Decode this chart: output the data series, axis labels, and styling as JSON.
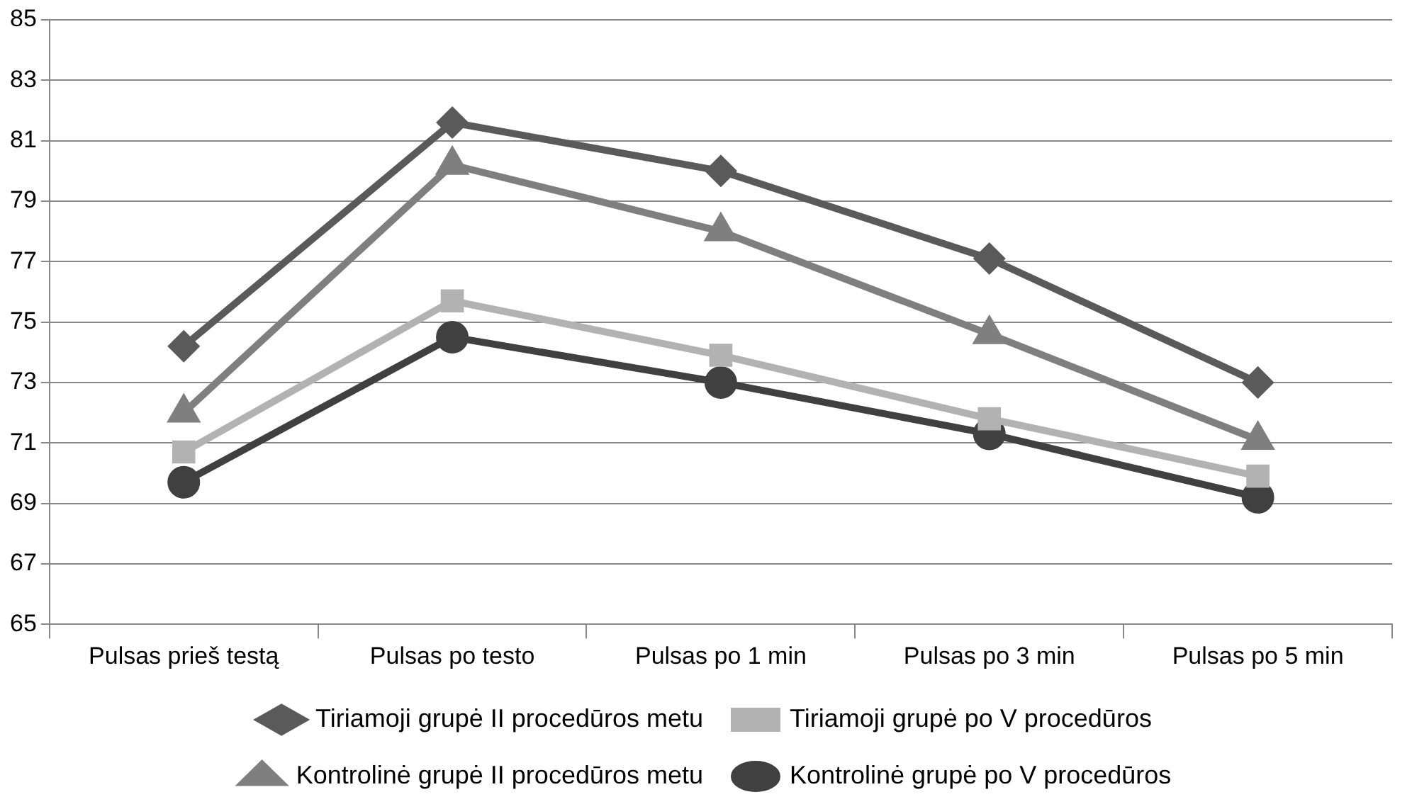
{
  "chart_data": {
    "type": "line",
    "categories": [
      "Pulsas prieš testą",
      "Pulsas po testo",
      "Pulsas po 1 min",
      "Pulsas po 3 min",
      "Pulsas po 5 min"
    ],
    "series": [
      {
        "name": "Tiriamoji grupė II procedūros metu",
        "color": "#5a5a5a",
        "marker": "diamond",
        "values": [
          74.2,
          81.6,
          80.0,
          77.1,
          73.0
        ]
      },
      {
        "name": "Tiriamoji grupė po V procedūros",
        "color": "#b2b2b2",
        "marker": "square",
        "values": [
          70.7,
          75.7,
          73.9,
          71.8,
          69.9
        ]
      },
      {
        "name": "Kontrolinė grupė II procedūros metu",
        "color": "#7f7f7f",
        "marker": "triangle",
        "values": [
          72.0,
          80.2,
          78.0,
          74.6,
          71.1
        ]
      },
      {
        "name": "Kontrolinė grupė po V procedūros",
        "color": "#404040",
        "marker": "circle",
        "values": [
          69.7,
          74.5,
          73.0,
          71.3,
          69.2
        ]
      }
    ],
    "ylim": [
      65,
      85
    ],
    "yticks": [
      65,
      67,
      69,
      71,
      73,
      75,
      77,
      79,
      81,
      83,
      85
    ],
    "grid": "y",
    "legend": "bottom"
  }
}
